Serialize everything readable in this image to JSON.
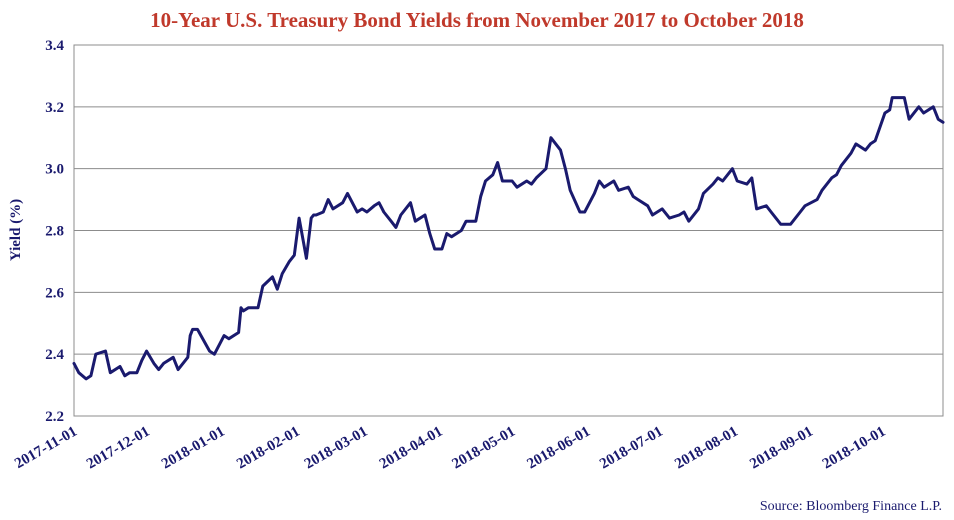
{
  "chart_data": {
    "type": "line",
    "title": "10-Year U.S. Treasury Bond Yields from November 2017 to October 2018",
    "ylabel": "Yield (%)",
    "xlabel": "",
    "ylim": [
      2.2,
      3.4
    ],
    "yticks": [
      "2.2",
      "2.4",
      "2.6",
      "2.8",
      "3.0",
      "3.2",
      "3.4"
    ],
    "xticks": [
      "2017-11-01",
      "2017-12-01",
      "2018-01-01",
      "2018-02-01",
      "2018-03-01",
      "2018-04-01",
      "2018-05-01",
      "2018-06-01",
      "2018-07-01",
      "2018-08-01",
      "2018-09-01",
      "2018-10-01"
    ],
    "xlim": [
      "2017-11-01",
      "2018-10-26"
    ],
    "grid": true,
    "source": "Source: Bloomberg Finance L.P.",
    "line_color": "#1a1a6e",
    "series": [
      {
        "x": [
          "2017-11-01",
          "2017-11-03",
          "2017-11-06",
          "2017-11-08",
          "2017-11-10",
          "2017-11-14",
          "2017-11-16",
          "2017-11-20",
          "2017-11-22",
          "2017-11-24",
          "2017-11-27",
          "2017-11-29",
          "2017-12-01",
          "2017-12-04",
          "2017-12-06",
          "2017-12-08",
          "2017-12-12",
          "2017-12-14",
          "2017-12-18",
          "2017-12-19",
          "2017-12-20",
          "2017-12-22",
          "2017-12-27",
          "2017-12-29",
          "2018-01-02",
          "2018-01-04",
          "2018-01-08",
          "2018-01-09",
          "2018-01-10",
          "2018-01-12",
          "2018-01-16",
          "2018-01-18",
          "2018-01-22",
          "2018-01-24",
          "2018-01-26",
          "2018-01-29",
          "2018-01-31",
          "2018-02-02",
          "2018-02-05",
          "2018-02-07",
          "2018-02-08",
          "2018-02-09",
          "2018-02-12",
          "2018-02-14",
          "2018-02-16",
          "2018-02-20",
          "2018-02-22",
          "2018-02-26",
          "2018-02-28",
          "2018-03-02",
          "2018-03-05",
          "2018-03-07",
          "2018-03-09",
          "2018-03-12",
          "2018-03-14",
          "2018-03-16",
          "2018-03-20",
          "2018-03-22",
          "2018-03-26",
          "2018-03-28",
          "2018-03-30",
          "2018-04-02",
          "2018-04-04",
          "2018-04-06",
          "2018-04-10",
          "2018-04-12",
          "2018-04-16",
          "2018-04-18",
          "2018-04-20",
          "2018-04-23",
          "2018-04-25",
          "2018-04-27",
          "2018-05-01",
          "2018-05-03",
          "2018-05-07",
          "2018-05-09",
          "2018-05-11",
          "2018-05-15",
          "2018-05-17",
          "2018-05-21",
          "2018-05-23",
          "2018-05-25",
          "2018-05-29",
          "2018-05-31",
          "2018-06-04",
          "2018-06-06",
          "2018-06-08",
          "2018-06-12",
          "2018-06-14",
          "2018-06-18",
          "2018-06-20",
          "2018-06-22",
          "2018-06-26",
          "2018-06-28",
          "2018-07-02",
          "2018-07-05",
          "2018-07-09",
          "2018-07-11",
          "2018-07-13",
          "2018-07-17",
          "2018-07-19",
          "2018-07-23",
          "2018-07-25",
          "2018-07-27",
          "2018-07-31",
          "2018-08-02",
          "2018-08-06",
          "2018-08-08",
          "2018-08-10",
          "2018-08-14",
          "2018-08-16",
          "2018-08-20",
          "2018-08-22",
          "2018-08-24",
          "2018-08-28",
          "2018-08-30",
          "2018-09-04",
          "2018-09-06",
          "2018-09-10",
          "2018-09-12",
          "2018-09-14",
          "2018-09-18",
          "2018-09-20",
          "2018-09-24",
          "2018-09-26",
          "2018-09-28",
          "2018-10-02",
          "2018-10-04",
          "2018-10-05",
          "2018-10-08",
          "2018-10-10",
          "2018-10-12",
          "2018-10-16",
          "2018-10-18",
          "2018-10-22",
          "2018-10-24",
          "2018-10-26"
        ],
        "values": [
          2.37,
          2.34,
          2.32,
          2.33,
          2.4,
          2.41,
          2.34,
          2.36,
          2.33,
          2.34,
          2.34,
          2.38,
          2.41,
          2.37,
          2.35,
          2.37,
          2.39,
          2.35,
          2.39,
          2.46,
          2.48,
          2.48,
          2.41,
          2.4,
          2.46,
          2.45,
          2.47,
          2.55,
          2.54,
          2.55,
          2.55,
          2.62,
          2.65,
          2.61,
          2.66,
          2.7,
          2.72,
          2.84,
          2.71,
          2.84,
          2.85,
          2.85,
          2.86,
          2.9,
          2.87,
          2.89,
          2.92,
          2.86,
          2.87,
          2.86,
          2.88,
          2.89,
          2.86,
          2.83,
          2.81,
          2.85,
          2.89,
          2.83,
          2.85,
          2.79,
          2.74,
          2.74,
          2.79,
          2.78,
          2.8,
          2.83,
          2.83,
          2.91,
          2.96,
          2.98,
          3.02,
          2.96,
          2.96,
          2.94,
          2.96,
          2.95,
          2.97,
          3.0,
          3.1,
          3.06,
          3.0,
          2.93,
          2.86,
          2.86,
          2.92,
          2.96,
          2.94,
          2.96,
          2.93,
          2.94,
          2.91,
          2.9,
          2.88,
          2.85,
          2.87,
          2.84,
          2.85,
          2.86,
          2.83,
          2.87,
          2.92,
          2.95,
          2.97,
          2.96,
          3.0,
          2.96,
          2.95,
          2.97,
          2.87,
          2.88,
          2.86,
          2.82,
          2.82,
          2.82,
          2.86,
          2.88,
          2.9,
          2.93,
          2.97,
          2.98,
          3.01,
          3.05,
          3.08,
          3.06,
          3.08,
          3.09,
          3.18,
          3.19,
          3.23,
          3.23,
          3.23,
          3.16,
          3.2,
          3.18,
          3.2,
          3.16,
          3.15
        ]
      }
    ]
  }
}
